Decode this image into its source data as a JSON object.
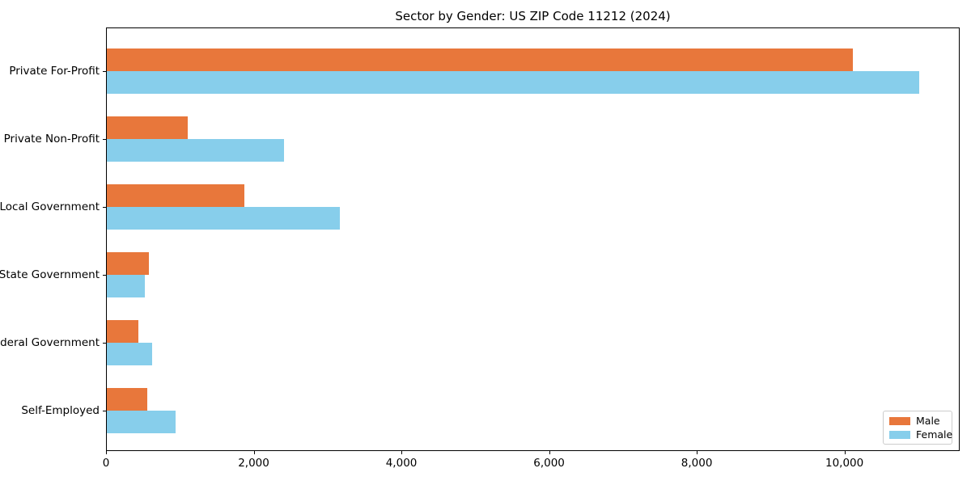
{
  "title": "Sector by Gender: US ZIP Code 11212 (2024)",
  "chart_data": {
    "type": "bar",
    "orientation": "horizontal",
    "title": "Sector by Gender: US ZIP Code 11212 (2024)",
    "categories": [
      "Private For-Profit",
      "Private Non-Profit",
      "Local Government",
      "State Government",
      "Federal Government",
      "Self-Employed"
    ],
    "series": [
      {
        "name": "Male",
        "color": "#e8773b",
        "values": [
          10100,
          1100,
          1860,
          570,
          430,
          550
        ]
      },
      {
        "name": "Female",
        "color": "#87ceeb",
        "values": [
          11000,
          2400,
          3160,
          520,
          610,
          930
        ]
      }
    ],
    "xlabel": "",
    "ylabel": "",
    "xlim": [
      0,
      11560
    ],
    "xticks": [
      0,
      2000,
      4000,
      6000,
      8000,
      10000
    ],
    "xtick_labels": [
      "0",
      "2,000",
      "4,000",
      "6,000",
      "8,000",
      "10,000"
    ],
    "grid": false,
    "legend_position": "lower right"
  },
  "legend": {
    "entries": [
      {
        "label": "Male",
        "color": "#e8773b"
      },
      {
        "label": "Female",
        "color": "#87ceeb"
      }
    ]
  }
}
